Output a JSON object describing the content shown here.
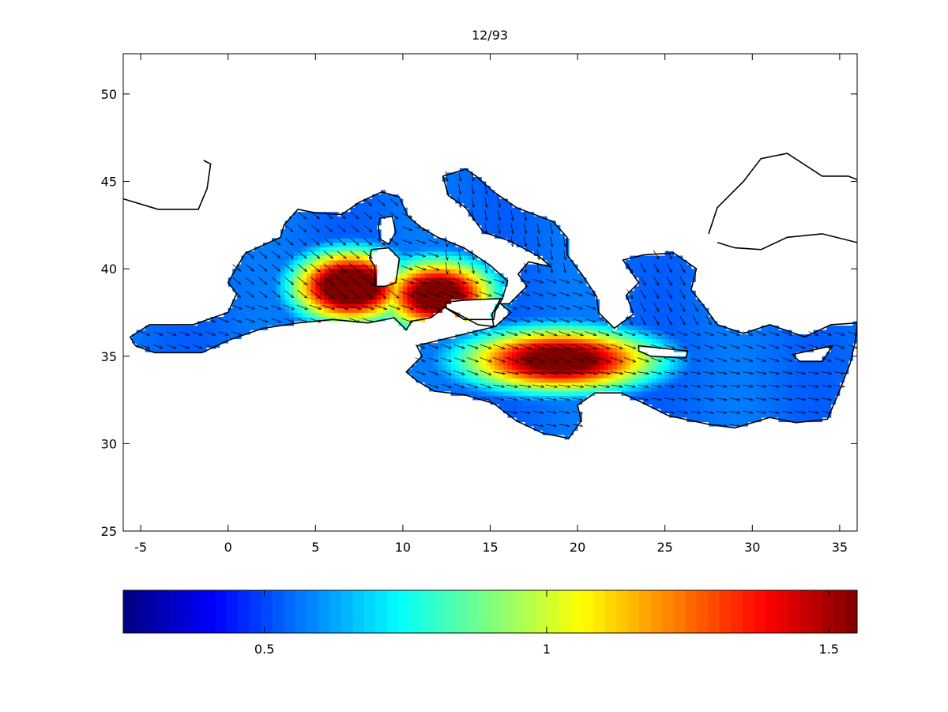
{
  "chart_data": {
    "type": "heatmap",
    "title": "12/93",
    "xlabel": "",
    "ylabel": "",
    "xlim": [
      -6,
      36
    ],
    "ylim": [
      25,
      52.3
    ],
    "x_ticks": [
      -5,
      0,
      5,
      10,
      15,
      20,
      25,
      30,
      35
    ],
    "y_ticks": [
      25,
      30,
      35,
      40,
      45,
      50
    ],
    "grid": false,
    "overlay": "wind vectors (arrows), predominantly eastward / south-eastward",
    "colormap": "jet",
    "colorbar": {
      "orientation": "horizontal",
      "placement": "bottom",
      "range": [
        0.25,
        1.55
      ],
      "ticks": [
        0.5,
        1,
        1.5
      ]
    },
    "field_peaks": [
      {
        "lon": 7,
        "lat": 39,
        "value": 1.5
      },
      {
        "lon": 12,
        "lat": 38.5,
        "value": 1.4
      },
      {
        "lon": 19,
        "lat": 34.8,
        "value": 1.35
      }
    ]
  }
}
